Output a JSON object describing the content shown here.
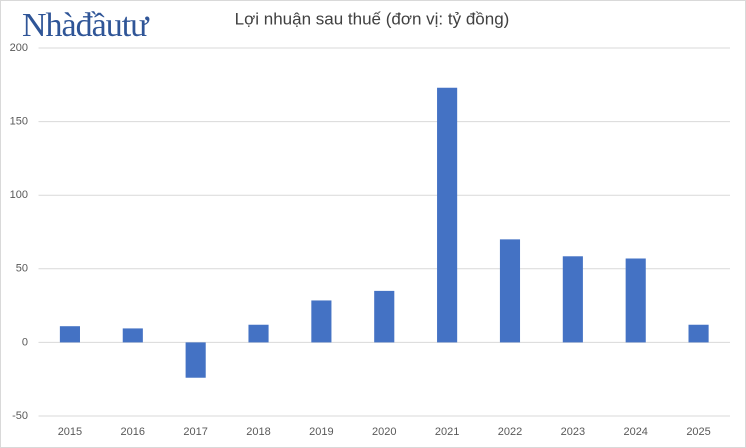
{
  "logo": "Nhàđầutư",
  "chart_data": {
    "type": "bar",
    "title": "Lợi nhuận sau thuế (đơn vị: tỷ đồng)",
    "categories": [
      "2015",
      "2016",
      "2017",
      "2018",
      "2019",
      "2020",
      "2021",
      "2022",
      "2023",
      "2024",
      "2025"
    ],
    "values": [
      11,
      9.5,
      -24,
      12,
      28.5,
      35,
      173,
      70,
      58.5,
      57,
      12
    ],
    "color": "#4472c4",
    "ylim": [
      -50,
      200
    ],
    "yticks": [
      -50,
      0,
      50,
      100,
      150,
      200
    ],
    "grid": true
  }
}
